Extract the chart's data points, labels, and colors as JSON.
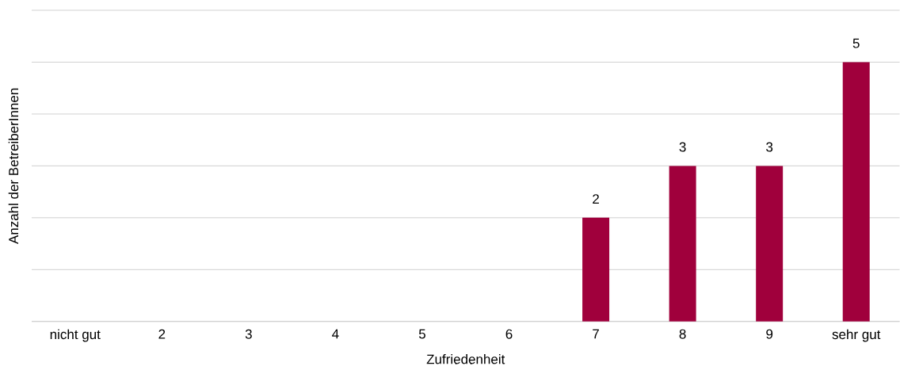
{
  "chart_data": {
    "type": "bar",
    "xlabel": "Zufriedenheit",
    "ylabel": "Anzahl der BetreiberInnen",
    "categories": [
      "nicht gut",
      "2",
      "3",
      "4",
      "5",
      "6",
      "7",
      "8",
      "9",
      "sehr gut"
    ],
    "values": [
      0,
      0,
      0,
      0,
      0,
      0,
      2,
      3,
      3,
      5
    ],
    "value_labels": [
      null,
      null,
      null,
      null,
      null,
      null,
      "2",
      "3",
      "3",
      "5"
    ],
    "color": "#a0003c",
    "tick_labels": "x",
    "grid": "y"
  }
}
